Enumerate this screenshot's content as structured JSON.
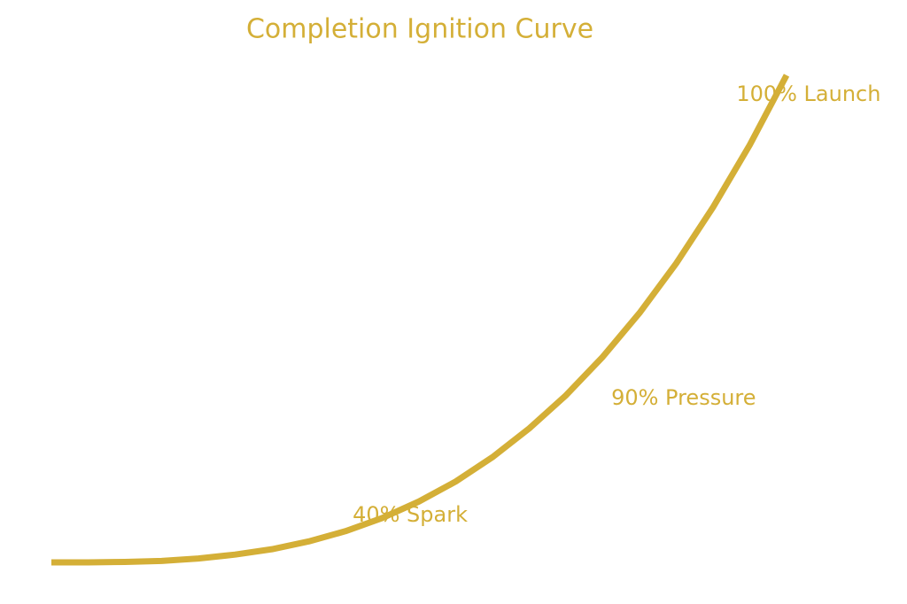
{
  "chart_data": {
    "type": "line",
    "title": "Completion Ignition Curve",
    "x": [
      0,
      0.05,
      0.1,
      0.15,
      0.2,
      0.25,
      0.3,
      0.35,
      0.4,
      0.45,
      0.5,
      0.55,
      0.6,
      0.65,
      0.7,
      0.75,
      0.8,
      0.85,
      0.9,
      0.95,
      1
    ],
    "series": [
      {
        "color": "#d4af37",
        "values": [
          0,
          0.0,
          0.001,
          0.003,
          0.008,
          0.016,
          0.027,
          0.043,
          0.064,
          0.091,
          0.125,
          0.166,
          0.216,
          0.275,
          0.343,
          0.422,
          0.512,
          0.614,
          0.729,
          0.857,
          1
        ]
      }
    ],
    "xlim": [
      0,
      1
    ],
    "ylim": [
      0,
      1
    ],
    "annotations": [
      {
        "text": "40% Spark",
        "x": 0.488,
        "y": 0.096
      },
      {
        "text": "90% Pressure",
        "x": 0.86,
        "y": 0.336
      },
      {
        "text": "100% Launch",
        "x": 1.03,
        "y": 0.96
      }
    ]
  }
}
